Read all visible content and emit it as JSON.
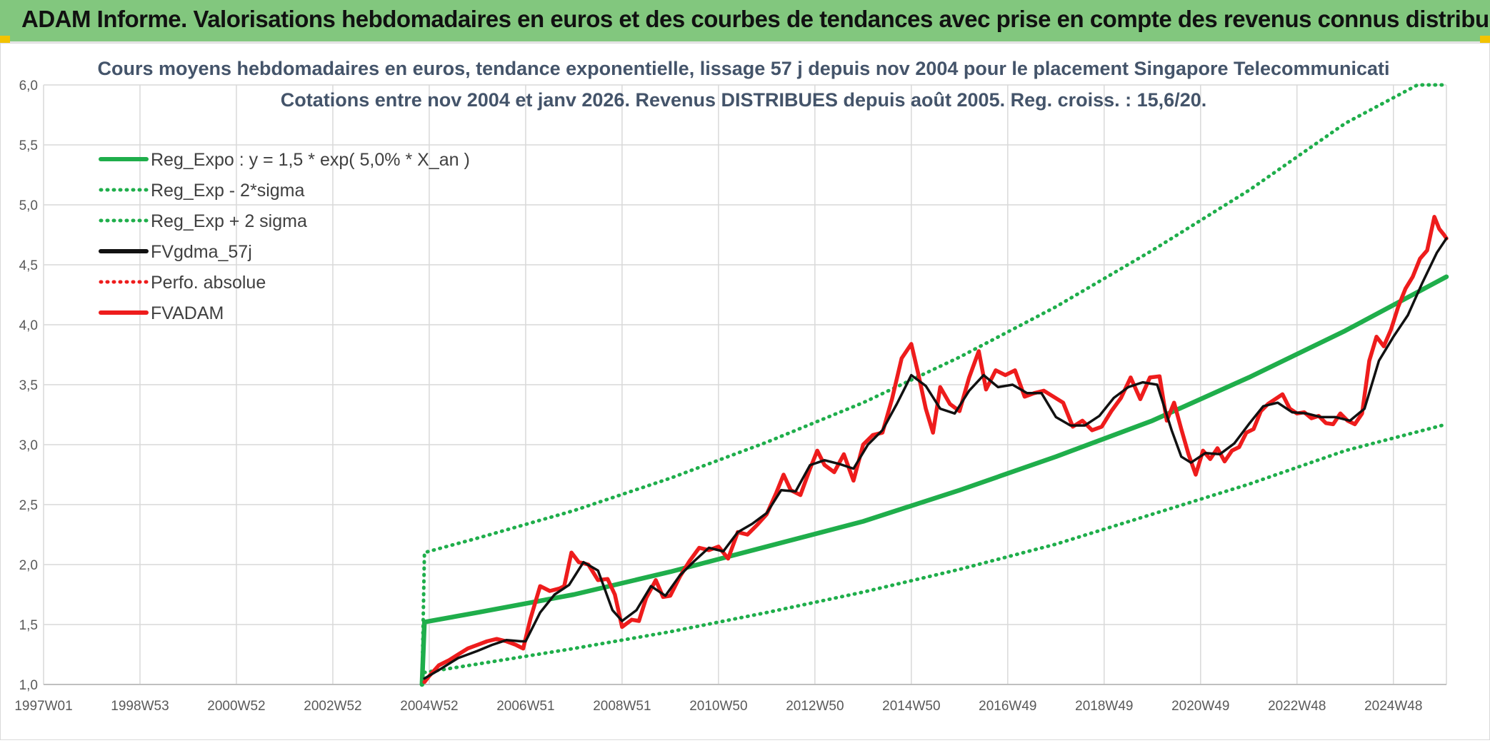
{
  "banner": {
    "title": "ADAM Informe. Valorisations hebdomadaires en euros et des courbes de tendances avec prise en compte des revenus connus distribués"
  },
  "colors": {
    "banner_bg": "#82c77e",
    "green": "#1fae4b",
    "red": "#ee1c1c",
    "black": "#111111",
    "grid": "#d9d9d9"
  },
  "chart_data": {
    "type": "line",
    "title": "Cours moyens hebdomadaires en euros, tendance exponentielle, lissage 57 j depuis nov 2004 pour le placement Singapore Telecommunicati",
    "subtitle": "Cotations entre nov 2004 et janv 2026. Revenus DISTRIBUES depuis août 2005. Reg. croiss. : 15,6/20.",
    "xlabel": "",
    "ylabel": "",
    "ylim": [
      1.0,
      6.0
    ],
    "yticks": [
      "1,0",
      "1,5",
      "2,0",
      "2,5",
      "3,0",
      "3,5",
      "4,0",
      "4,5",
      "5,0",
      "5,5",
      "6,0"
    ],
    "xlim": [
      1997.0,
      2026.1
    ],
    "xticks": [
      {
        "label": "1997W01",
        "x": 1997.0
      },
      {
        "label": "1998W53",
        "x": 1999.0
      },
      {
        "label": "2000W52",
        "x": 2001.0
      },
      {
        "label": "2002W52",
        "x": 2003.0
      },
      {
        "label": "2004W52",
        "x": 2005.0
      },
      {
        "label": "2006W51",
        "x": 2007.0
      },
      {
        "label": "2008W51",
        "x": 2009.0
      },
      {
        "label": "2010W50",
        "x": 2011.0
      },
      {
        "label": "2012W50",
        "x": 2013.0
      },
      {
        "label": "2014W50",
        "x": 2015.0
      },
      {
        "label": "2016W49",
        "x": 2017.0
      },
      {
        "label": "2018W49",
        "x": 2019.0
      },
      {
        "label": "2020W49",
        "x": 2021.0
      },
      {
        "label": "2022W48",
        "x": 2023.0
      },
      {
        "label": "2024W48",
        "x": 2025.0
      }
    ],
    "grid": true,
    "legend_position": "top-left",
    "series": [
      {
        "name": "Reg_Expo : y = 1,5 * exp( 5,0% *  X_an )",
        "color": "#1fae4b",
        "style": "solid",
        "x": [
          2004.85,
          2004.9,
          2006,
          2008,
          2010,
          2012,
          2014,
          2016,
          2018,
          2020,
          2022,
          2024,
          2026.1
        ],
        "y": [
          1.0,
          1.52,
          1.6,
          1.75,
          1.94,
          2.15,
          2.36,
          2.62,
          2.9,
          3.2,
          3.56,
          3.95,
          4.4
        ]
      },
      {
        "name": "Reg_Exp - 2*sigma",
        "color": "#1fae4b",
        "style": "dotted",
        "x": [
          2004.9,
          2006,
          2008,
          2010,
          2012,
          2014,
          2016,
          2018,
          2020,
          2022,
          2024,
          2026.1
        ],
        "y": [
          1.1,
          1.17,
          1.3,
          1.44,
          1.6,
          1.77,
          1.96,
          2.17,
          2.42,
          2.67,
          2.95,
          3.17
        ]
      },
      {
        "name": "Reg_Exp + 2 sigma",
        "color": "#1fae4b",
        "style": "dotted",
        "x": [
          2004.85,
          2004.9,
          2006,
          2008,
          2010,
          2012,
          2014,
          2016,
          2018,
          2020,
          2022,
          2024,
          2025.5,
          2026.1
        ],
        "y": [
          1.0,
          2.1,
          2.22,
          2.45,
          2.72,
          3.02,
          3.35,
          3.73,
          4.15,
          4.62,
          5.12,
          5.68,
          6.0,
          6.0
        ]
      },
      {
        "name": "FVgdma_57j",
        "color": "#111111",
        "style": "solid",
        "x": [
          2004.9,
          2005.2,
          2005.6,
          2006.0,
          2006.3,
          2006.6,
          2006.9,
          2007.0,
          2007.3,
          2007.6,
          2007.9,
          2008.2,
          2008.5,
          2008.8,
          2009.0,
          2009.3,
          2009.6,
          2009.9,
          2010.2,
          2010.5,
          2010.8,
          2011.1,
          2011.4,
          2011.7,
          2012.0,
          2012.3,
          2012.6,
          2012.9,
          2013.2,
          2013.5,
          2013.8,
          2014.1,
          2014.4,
          2014.7,
          2015.0,
          2015.3,
          2015.6,
          2015.9,
          2016.2,
          2016.5,
          2016.8,
          2017.1,
          2017.4,
          2017.7,
          2018.0,
          2018.3,
          2018.6,
          2018.9,
          2019.2,
          2019.5,
          2019.8,
          2020.1,
          2020.4,
          2020.6,
          2020.8,
          2021.1,
          2021.4,
          2021.7,
          2022.0,
          2022.3,
          2022.6,
          2022.9,
          2023.2,
          2023.5,
          2023.8,
          2024.1,
          2024.4,
          2024.7,
          2025.0,
          2025.3,
          2025.6,
          2025.9,
          2026.1
        ],
        "y": [
          1.05,
          1.12,
          1.22,
          1.28,
          1.33,
          1.37,
          1.36,
          1.36,
          1.6,
          1.75,
          1.83,
          2.02,
          1.95,
          1.62,
          1.53,
          1.62,
          1.82,
          1.74,
          1.91,
          2.03,
          2.14,
          2.11,
          2.27,
          2.34,
          2.43,
          2.62,
          2.61,
          2.83,
          2.87,
          2.84,
          2.8,
          3.0,
          3.12,
          3.34,
          3.58,
          3.49,
          3.3,
          3.26,
          3.45,
          3.58,
          3.48,
          3.5,
          3.43,
          3.43,
          3.23,
          3.16,
          3.16,
          3.24,
          3.39,
          3.48,
          3.52,
          3.5,
          3.12,
          2.9,
          2.85,
          2.93,
          2.92,
          3.01,
          3.17,
          3.32,
          3.35,
          3.27,
          3.26,
          3.23,
          3.23,
          3.2,
          3.3,
          3.7,
          3.9,
          4.08,
          4.35,
          4.6,
          4.72
        ]
      },
      {
        "name": "Perfo. absolue",
        "color": "#ee1c1c",
        "style": "dotted",
        "x": [],
        "y": []
      },
      {
        "name": "FVADAM",
        "color": "#ee1c1c",
        "style": "solid",
        "x": [
          2004.9,
          2005.0,
          2005.2,
          2005.4,
          2005.6,
          2005.8,
          2006.0,
          2006.2,
          2006.4,
          2006.6,
          2006.8,
          2006.95,
          2007.1,
          2007.3,
          2007.5,
          2007.7,
          2007.8,
          2007.95,
          2008.1,
          2008.3,
          2008.5,
          2008.7,
          2008.85,
          2009.0,
          2009.2,
          2009.35,
          2009.5,
          2009.7,
          2009.85,
          2010.0,
          2010.2,
          2010.4,
          2010.6,
          2010.8,
          2011.0,
          2011.2,
          2011.4,
          2011.6,
          2011.8,
          2012.0,
          2012.2,
          2012.35,
          2012.5,
          2012.7,
          2012.9,
          2013.05,
          2013.2,
          2013.4,
          2013.6,
          2013.8,
          2014.0,
          2014.2,
          2014.4,
          2014.6,
          2014.8,
          2015.0,
          2015.15,
          2015.3,
          2015.45,
          2015.6,
          2015.8,
          2016.0,
          2016.2,
          2016.4,
          2016.55,
          2016.75,
          2016.95,
          2017.15,
          2017.35,
          2017.55,
          2017.75,
          2017.95,
          2018.15,
          2018.35,
          2018.55,
          2018.75,
          2018.95,
          2019.15,
          2019.35,
          2019.55,
          2019.75,
          2019.95,
          2020.15,
          2020.3,
          2020.45,
          2020.6,
          2020.75,
          2020.9,
          2021.05,
          2021.2,
          2021.35,
          2021.5,
          2021.65,
          2021.8,
          2021.95,
          2022.1,
          2022.25,
          2022.4,
          2022.55,
          2022.7,
          2022.85,
          2023.0,
          2023.15,
          2023.3,
          2023.45,
          2023.6,
          2023.75,
          2023.9,
          2024.05,
          2024.2,
          2024.35,
          2024.5,
          2024.65,
          2024.8,
          2024.95,
          2025.1,
          2025.25,
          2025.4,
          2025.55,
          2025.7,
          2025.85,
          2025.95,
          2026.05,
          2026.1
        ],
        "y": [
          1.02,
          1.07,
          1.16,
          1.2,
          1.25,
          1.3,
          1.33,
          1.36,
          1.38,
          1.36,
          1.33,
          1.3,
          1.55,
          1.82,
          1.78,
          1.8,
          1.82,
          2.1,
          2.02,
          2.0,
          1.87,
          1.88,
          1.75,
          1.48,
          1.54,
          1.53,
          1.72,
          1.87,
          1.73,
          1.74,
          1.9,
          2.03,
          2.14,
          2.12,
          2.15,
          2.05,
          2.27,
          2.25,
          2.33,
          2.42,
          2.6,
          2.75,
          2.62,
          2.58,
          2.8,
          2.95,
          2.83,
          2.77,
          2.92,
          2.7,
          3.0,
          3.08,
          3.1,
          3.38,
          3.72,
          3.84,
          3.58,
          3.3,
          3.1,
          3.48,
          3.34,
          3.28,
          3.56,
          3.78,
          3.46,
          3.62,
          3.58,
          3.62,
          3.4,
          3.43,
          3.45,
          3.4,
          3.35,
          3.15,
          3.2,
          3.12,
          3.15,
          3.28,
          3.39,
          3.56,
          3.38,
          3.56,
          3.57,
          3.2,
          3.35,
          3.13,
          2.92,
          2.75,
          2.95,
          2.88,
          2.97,
          2.86,
          2.95,
          2.98,
          3.1,
          3.13,
          3.28,
          3.34,
          3.38,
          3.42,
          3.3,
          3.26,
          3.27,
          3.22,
          3.24,
          3.18,
          3.17,
          3.26,
          3.2,
          3.17,
          3.26,
          3.7,
          3.9,
          3.82,
          3.96,
          4.15,
          4.3,
          4.4,
          4.55,
          4.62,
          4.9,
          4.8,
          4.75,
          4.72
        ]
      }
    ]
  }
}
